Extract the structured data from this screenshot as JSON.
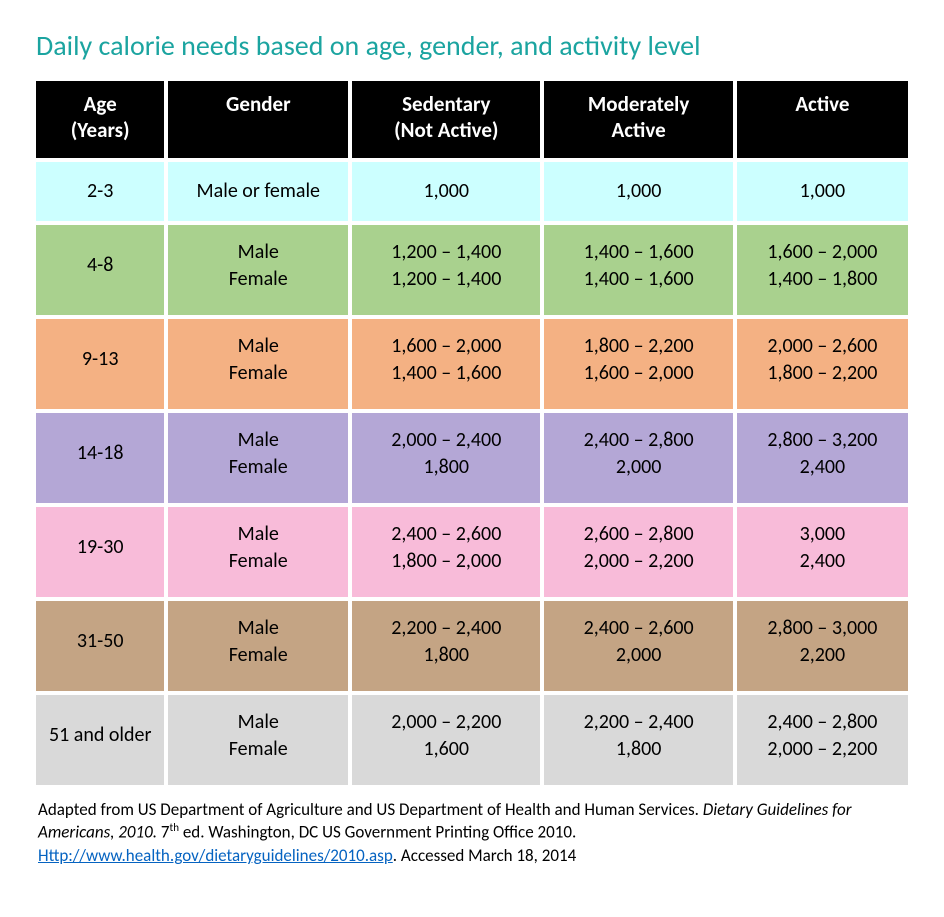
{
  "title": "Daily calorie needs based on age, gender, and activity level",
  "title_color": "#1ba4a0",
  "header_bg": "#000000",
  "header_fg": "#ffffff",
  "col_widths_pct": [
    15,
    21,
    22,
    22,
    20
  ],
  "columns": [
    "Age (Years)",
    "Gender",
    "Sedentary (Not Active)",
    "Moderately Active",
    "Active"
  ],
  "rows": [
    {
      "bg": "#ccffff",
      "single": true,
      "age": "2-3",
      "gender": [
        "Male or female"
      ],
      "sedentary": [
        "1,000"
      ],
      "moderate": [
        "1,000"
      ],
      "active": [
        "1,000"
      ]
    },
    {
      "bg": "#a9d18e",
      "age": "4-8",
      "gender": [
        "Male",
        "Female"
      ],
      "sedentary": [
        "1,200 – 1,400",
        "1,200 – 1,400"
      ],
      "moderate": [
        "1,400 – 1,600",
        "1,400 – 1,600"
      ],
      "active": [
        "1,600 – 2,000",
        "1,400 – 1,800"
      ]
    },
    {
      "bg": "#f4b183",
      "age": "9-13",
      "gender": [
        "Male",
        "Female"
      ],
      "sedentary": [
        "1,600 – 2,000",
        "1,400 – 1,600"
      ],
      "moderate": [
        "1,800 – 2,200",
        "1,600 – 2,000"
      ],
      "active": [
        "2,000 – 2,600",
        "1,800 – 2,200"
      ]
    },
    {
      "bg": "#b4a7d6",
      "age": "14-18",
      "gender": [
        "Male",
        "Female"
      ],
      "sedentary": [
        "2,000 – 2,400",
        "1,800"
      ],
      "moderate": [
        "2,400 – 2,800",
        "2,000"
      ],
      "active": [
        "2,800 – 3,200",
        "2,400"
      ]
    },
    {
      "bg": "#f8bbd9",
      "age": "19-30",
      "gender": [
        "Male",
        "Female"
      ],
      "sedentary": [
        "2,400 – 2,600",
        "1,800 – 2,000"
      ],
      "moderate": [
        "2,600 – 2,800",
        "2,000 – 2,200"
      ],
      "active": [
        "3,000",
        "2,400"
      ]
    },
    {
      "bg": "#c4a484",
      "age": "31-50",
      "gender": [
        "Male",
        "Female"
      ],
      "sedentary": [
        "2,200 – 2,400",
        "1,800"
      ],
      "moderate": [
        "2,400 – 2,600",
        "2,000"
      ],
      "active": [
        "2,800 – 3,000",
        "2,200"
      ]
    },
    {
      "bg": "#d9d9d9",
      "age": "51 and older",
      "gender": [
        "Male",
        "Female"
      ],
      "sedentary": [
        "2,000 – 2,200",
        "1,600"
      ],
      "moderate": [
        "2,200 – 2,400",
        "1,800"
      ],
      "active": [
        "2,400 – 2,800",
        "2,000 – 2,200"
      ]
    }
  ],
  "footnote": {
    "pre": "Adapted from US Department of Agriculture and US Department of Health and Human Services. ",
    "italic": "Dietary Guidelines for Americans, 2010.",
    "mid": " 7",
    "sup": "th",
    "post_sup": " ed. Washington, DC US Government Printing Office 2010. ",
    "link_text": "Http://www.health.gov/dietaryguidelines/2010.asp",
    "after_link": ". Accessed March 18, 2014"
  }
}
